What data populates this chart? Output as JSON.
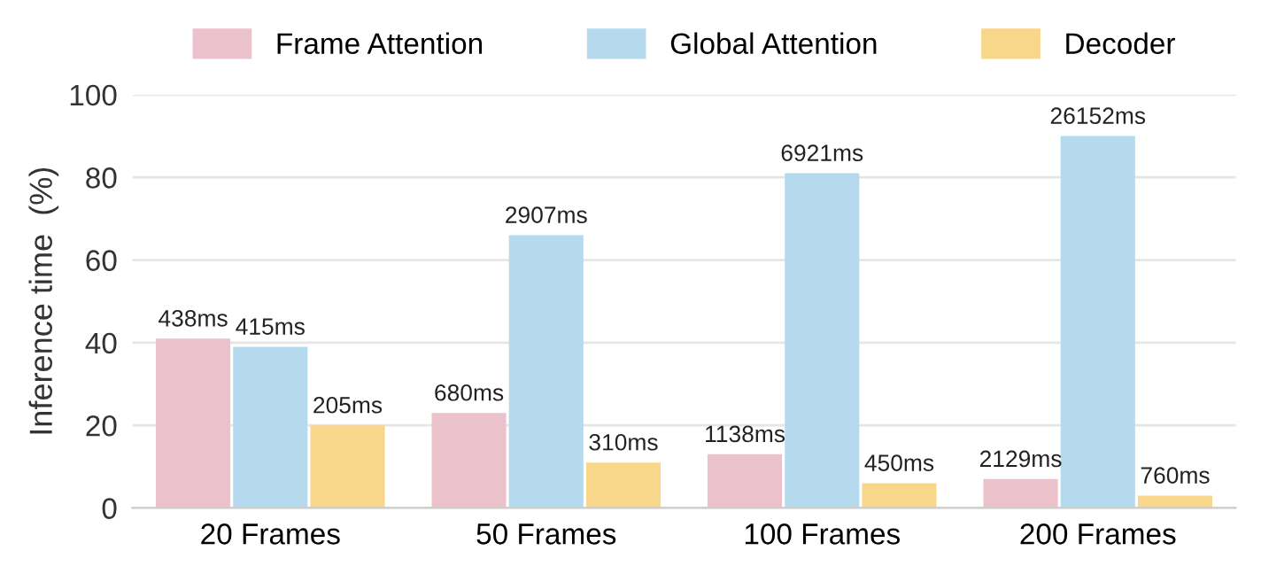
{
  "chart_data": {
    "type": "bar",
    "ylabel": "Inference time  (%)",
    "categories": [
      "20 Frames",
      "50 Frames",
      "100 Frames",
      "200 Frames"
    ],
    "series": [
      {
        "name": "Frame Attention",
        "color": "#ebc1cb",
        "values": [
          41,
          23,
          13,
          7
        ]
      },
      {
        "name": "Global Attention",
        "color": "#b5daed",
        "values": [
          39,
          66,
          81,
          90
        ]
      },
      {
        "name": "Decoder",
        "color": "#f8d68a",
        "values": [
          20,
          11,
          6,
          3
        ]
      }
    ],
    "annotations": [
      "438ms",
      "415ms",
      "205ms",
      "680ms",
      "2907ms",
      "310ms",
      "1138ms",
      "6921ms",
      "450ms",
      "2129ms",
      "26152ms",
      "760ms"
    ],
    "ylim": [
      0,
      100
    ],
    "yticks": [
      0,
      20,
      40,
      60,
      80,
      100
    ],
    "grid": "y",
    "legend": "top"
  }
}
